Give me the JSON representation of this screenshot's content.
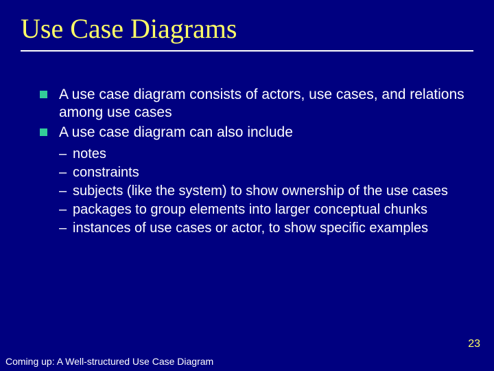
{
  "colors": {
    "background": "#000080",
    "title": "#ffff66",
    "body_text": "#ffffff",
    "bullet_square": "#33cc99",
    "underline": "#ffffff",
    "page_number": "#ffff66"
  },
  "typography": {
    "title_font": "Times New Roman",
    "title_size_pt": 40,
    "body_font": "Arial",
    "body_size_pt": 21,
    "sub_size_pt": 20,
    "footer_size_pt": 14
  },
  "title": "Use Case Diagrams",
  "bullets": [
    "A use case diagram consists of actors, use cases, and relations among use cases",
    "A use case diagram can also include"
  ],
  "sub_bullets": [
    "notes",
    "constraints",
    "subjects (like the system) to show ownership of the use cases",
    "packages to group elements into larger conceptual chunks",
    "instances of use cases or actor, to show specific examples"
  ],
  "page_number": "23",
  "footer": "Coming up: A Well-structured Use Case Diagram"
}
